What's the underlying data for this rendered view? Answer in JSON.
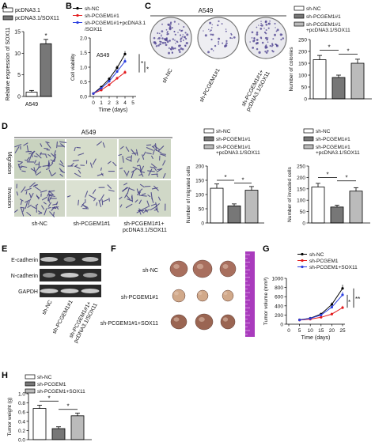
{
  "panels": {
    "A": "A",
    "B": "B",
    "C": "C",
    "D": "D",
    "E": "E",
    "F": "F",
    "G": "G",
    "H": "H"
  },
  "colors": {
    "nc": "#ffffff",
    "kd": "#777777",
    "rescue": "#bbbbbb",
    "black": "#000000",
    "red": "#e31a1c",
    "blue": "#2b3fe0"
  },
  "chart_data": [
    {
      "id": "A",
      "type": "bar",
      "legend": [
        "pcDNA3.1",
        "pcDNA3.1/SOX11"
      ],
      "categories": [
        "pcDNA3.1",
        "pcDNA3.1/SOX11"
      ],
      "values": [
        1.0,
        12.2
      ],
      "errors": [
        0.4,
        1.0
      ],
      "xlabel": "A549",
      "ylabel": "Relative expression of SOX11",
      "ylim": [
        0,
        15
      ],
      "yticks": [
        0,
        5,
        10,
        15
      ],
      "sig": [
        "*"
      ]
    },
    {
      "id": "B",
      "type": "line",
      "series": [
        {
          "name": "sh-NC",
          "values": [
            0.1,
            0.32,
            0.6,
            0.98,
            1.45
          ],
          "errors": [
            0.02,
            0.04,
            0.06,
            0.08,
            0.1
          ]
        },
        {
          "name": "sh-PCGEM1#1",
          "values": [
            0.1,
            0.22,
            0.4,
            0.62,
            0.82
          ],
          "errors": [
            0.02,
            0.03,
            0.05,
            0.06,
            0.08
          ]
        },
        {
          "name": "sh-PCGEM1#1+pcDNA3.1/SOX11",
          "values": [
            0.1,
            0.28,
            0.52,
            0.85,
            1.2
          ],
          "errors": [
            0.02,
            0.04,
            0.05,
            0.07,
            0.1
          ]
        }
      ],
      "x": [
        0,
        1,
        2,
        3,
        4
      ],
      "xticks": [
        0,
        1,
        2,
        3,
        4,
        5
      ],
      "xlabel": "Time (days)",
      "ylabel": "Cell viability",
      "ylim": [
        0.0,
        2.0
      ],
      "yticks": [
        "0.0",
        "0.5",
        "1.0",
        "1.5",
        "2.0"
      ],
      "inset_label": "A549",
      "sig": [
        "*",
        "*"
      ]
    },
    {
      "id": "C",
      "type": "bar",
      "legend": [
        "sh-NC",
        "sh-PCGEM1#1",
        "sh-PCGEM1#1\n+pcDNA3.1/SOX11"
      ],
      "categories": [
        "sh-NC",
        "sh-PCGEM1#1",
        "sh-PCGEM1#1+pcDNA3.1/SOX11"
      ],
      "values": [
        165,
        90,
        150
      ],
      "errors": [
        18,
        10,
        17
      ],
      "ylabel": "Number of colonies",
      "ylim": [
        0,
        250
      ],
      "yticks": [
        0,
        50,
        100,
        150,
        200,
        250
      ],
      "sig": [
        "*",
        "*"
      ]
    },
    {
      "id": "D1",
      "type": "bar",
      "legend": [
        "sh-NC",
        "sh-PCGEM1#1",
        "sh-PCGEM1#1\n+pcDNA3.1/SOX11"
      ],
      "categories": [
        "sh-NC",
        "sh-PCGEM1#1",
        "sh-PCGEM1#1+pcDNA3.1/SOX11"
      ],
      "values": [
        122,
        60,
        115
      ],
      "errors": [
        15,
        7,
        13
      ],
      "ylabel": "Number of migrated cells",
      "ylim": [
        0,
        200
      ],
      "yticks": [
        0,
        50,
        100,
        150,
        200
      ],
      "sig": [
        "*",
        "*"
      ]
    },
    {
      "id": "D2",
      "type": "bar",
      "legend": [
        "sh-NC",
        "sh-PCGEM1#1",
        "sh-PCGEM1#1\n+pcDNA3.1/SOX11"
      ],
      "categories": [
        "sh-NC",
        "sh-PCGEM1#1",
        "sh-PCGEM1#1+pcDNA3.1/SOX11"
      ],
      "values": [
        158,
        70,
        140
      ],
      "errors": [
        16,
        8,
        15
      ],
      "ylabel": "Number of invaded cells",
      "ylim": [
        0,
        250
      ],
      "yticks": [
        0,
        50,
        100,
        150,
        200,
        250
      ],
      "sig": [
        "*",
        "*"
      ]
    },
    {
      "id": "G",
      "type": "line",
      "series": [
        {
          "name": "sh-NC",
          "values": [
            95,
            130,
            220,
            430,
            780
          ],
          "errors": [
            10,
            15,
            25,
            45,
            80
          ]
        },
        {
          "name": "sh-PCGEM1",
          "values": [
            90,
            110,
            150,
            220,
            360
          ],
          "errors": [
            8,
            12,
            18,
            25,
            40
          ]
        },
        {
          "name": "sh-PCGEM1+SOX11",
          "values": [
            92,
            125,
            200,
            370,
            640
          ],
          "errors": [
            9,
            14,
            22,
            40,
            70
          ]
        }
      ],
      "x": [
        5,
        10,
        15,
        20,
        25
      ],
      "xticks": [
        0,
        5,
        10,
        15,
        20,
        25
      ],
      "xlabel": "Time (days)",
      "ylabel": "Tumor volume (mm³)",
      "ylim": [
        0,
        1000
      ],
      "yticks": [
        0,
        200,
        400,
        600,
        800,
        1000
      ],
      "sig": [
        "*",
        "**"
      ]
    },
    {
      "id": "H",
      "type": "bar",
      "legend": [
        "sh-NC",
        "sh-PCGEM1",
        "sh-PCGEM1+SOX11"
      ],
      "categories": [
        "sh-NC",
        "sh-PCGEM1",
        "sh-PCGEM1+SOX11"
      ],
      "values": [
        0.68,
        0.24,
        0.52
      ],
      "errors": [
        0.07,
        0.04,
        0.06
      ],
      "ylabel": "Tumor weight (g)",
      "ylim": [
        0,
        1.0
      ],
      "yticks": [
        "0.0",
        "0.2",
        "0.4",
        "0.6",
        "0.8",
        "1.0"
      ],
      "sig": [
        "*",
        "*"
      ]
    }
  ],
  "images": {
    "C_header": "A549",
    "C_labels": [
      "sh-NC",
      "sh-PCGEM1#1",
      "sh-PCGEM1#1+\npcDNA3.1/SOX11"
    ],
    "D_header": "A549",
    "D_rows": [
      "Migration",
      "Invasion"
    ],
    "D_labels": [
      "sh-NC",
      "sh-PCGEM1#1",
      "sh-PCGEM1#1+\npcDNA3.1/SOX11"
    ],
    "E_rows": [
      "E-cadherin",
      "N-cadherin",
      "GAPDH"
    ],
    "E_labels": [
      "sh-NC",
      "sh-PCGEM1#1",
      "sh-PCGEM1#1+\npcDNA3.1/SOX11"
    ],
    "F_rows": [
      "sh-NC",
      "sh-PCGEM1#1",
      "sh-PCGEM1#1+SOX11"
    ]
  }
}
